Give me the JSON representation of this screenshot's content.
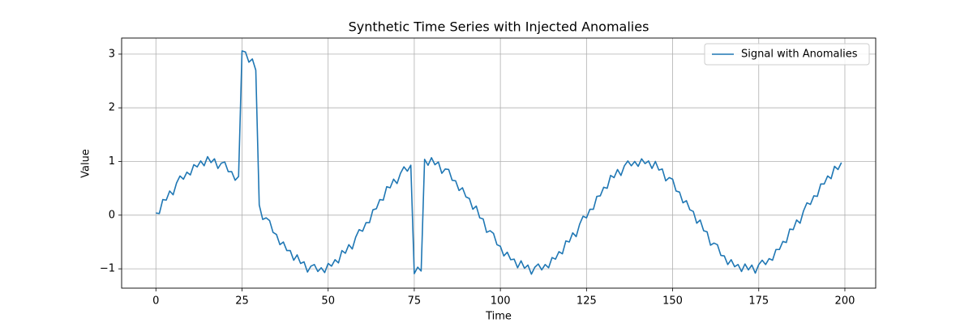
{
  "chart_data": {
    "type": "line",
    "title": "Synthetic Time Series with Injected Anomalies",
    "x_label": "Time",
    "y_label": "Value",
    "x": [
      0,
      1,
      2,
      3,
      4,
      5,
      6,
      7,
      8,
      9,
      10,
      11,
      12,
      13,
      14,
      15,
      16,
      17,
      18,
      19,
      20,
      21,
      22,
      23,
      24,
      25,
      26,
      27,
      28,
      29,
      30,
      31,
      32,
      33,
      34,
      35,
      36,
      37,
      38,
      39,
      40,
      41,
      42,
      43,
      44,
      45,
      46,
      47,
      48,
      49,
      50,
      51,
      52,
      53,
      54,
      55,
      56,
      57,
      58,
      59,
      60,
      61,
      62,
      63,
      64,
      65,
      66,
      67,
      68,
      69,
      70,
      71,
      72,
      73,
      74,
      75,
      76,
      77,
      78,
      79,
      80,
      81,
      82,
      83,
      84,
      85,
      86,
      87,
      88,
      89,
      90,
      91,
      92,
      93,
      94,
      95,
      96,
      97,
      98,
      99,
      100,
      101,
      102,
      103,
      104,
      105,
      106,
      107,
      108,
      109,
      110,
      111,
      112,
      113,
      114,
      115,
      116,
      117,
      118,
      119,
      120,
      121,
      122,
      123,
      124,
      125,
      126,
      127,
      128,
      129,
      130,
      131,
      132,
      133,
      134,
      135,
      136,
      137,
      138,
      139,
      140,
      141,
      142,
      143,
      144,
      145,
      146,
      147,
      148,
      149,
      150,
      151,
      152,
      153,
      154,
      155,
      156,
      157,
      158,
      159,
      160,
      161,
      162,
      163,
      164,
      165,
      166,
      167,
      168,
      169,
      170,
      171,
      172,
      173,
      174,
      175,
      176,
      177,
      178,
      179,
      180,
      181,
      182,
      183,
      184,
      185,
      186,
      187,
      188,
      189,
      190,
      191,
      192,
      193,
      194,
      195,
      196,
      197,
      198,
      199
    ],
    "series": [
      {
        "name": "Signal with Anomalies",
        "color": "#1f77b4",
        "values": [
          0.04,
          0.03,
          0.29,
          0.28,
          0.45,
          0.38,
          0.6,
          0.73,
          0.67,
          0.8,
          0.75,
          0.94,
          0.9,
          1.01,
          0.92,
          1.09,
          0.98,
          1.05,
          0.87,
          0.97,
          0.99,
          0.81,
          0.81,
          0.65,
          0.72,
          3.06,
          3.04,
          2.85,
          2.91,
          2.7,
          0.19,
          -0.08,
          -0.05,
          -0.1,
          -0.32,
          -0.36,
          -0.55,
          -0.5,
          -0.66,
          -0.66,
          -0.84,
          -0.74,
          -0.9,
          -0.87,
          -1.06,
          -0.95,
          -0.92,
          -1.05,
          -0.98,
          -1.07,
          -0.9,
          -0.95,
          -0.83,
          -0.89,
          -0.66,
          -0.71,
          -0.55,
          -0.63,
          -0.41,
          -0.27,
          -0.3,
          -0.14,
          -0.14,
          0.1,
          0.12,
          0.29,
          0.28,
          0.53,
          0.51,
          0.67,
          0.59,
          0.78,
          0.9,
          0.82,
          0.93,
          -1.09,
          -0.97,
          -1.04,
          1.04,
          0.93,
          1.07,
          0.94,
          0.99,
          0.78,
          0.86,
          0.85,
          0.65,
          0.64,
          0.46,
          0.51,
          0.34,
          0.31,
          0.11,
          0.17,
          -0.05,
          -0.07,
          -0.32,
          -0.29,
          -0.34,
          -0.55,
          -0.58,
          -0.76,
          -0.69,
          -0.83,
          -0.82,
          -0.98,
          -0.85,
          -0.99,
          -0.93,
          -1.1,
          -0.97,
          -0.91,
          -1.02,
          -0.92,
          -0.98,
          -0.79,
          -0.82,
          -0.68,
          -0.72,
          -0.48,
          -0.5,
          -0.33,
          -0.4,
          -0.17,
          -0.02,
          -0.05,
          0.11,
          0.11,
          0.35,
          0.36,
          0.52,
          0.5,
          0.74,
          0.7,
          0.85,
          0.74,
          0.92,
          1.01,
          0.92,
          1.0,
          0.91,
          1.05,
          0.96,
          1.01,
          0.87,
          1.0,
          0.84,
          0.86,
          0.64,
          0.7,
          0.67,
          0.45,
          0.43,
          0.23,
          0.27,
          0.1,
          0.07,
          -0.15,
          -0.09,
          -0.29,
          -0.31,
          -0.56,
          -0.52,
          -0.55,
          -0.75,
          -0.76,
          -0.92,
          -0.83,
          -0.96,
          -0.92,
          -1.05,
          -0.91,
          -1.02,
          -0.93,
          -1.08,
          -0.92,
          -0.84,
          -0.92,
          -0.81,
          -0.84,
          -0.64,
          -0.64,
          -0.49,
          -0.51,
          -0.26,
          -0.27,
          -0.09,
          -0.15,
          0.08,
          0.23,
          0.2,
          0.36,
          0.35,
          0.58,
          0.58,
          0.73,
          0.68,
          0.91,
          0.85,
          0.98
        ]
      }
    ],
    "xlim": [
      -9.95,
      208.95
    ],
    "ylim": [
      -1.36,
      3.3
    ],
    "xticks": [
      0,
      25,
      50,
      75,
      100,
      125,
      150,
      175,
      200
    ],
    "yticks": [
      {
        "value": -1,
        "label": "−1"
      },
      0,
      1,
      2,
      3
    ],
    "grid": true,
    "legend": "upper right"
  }
}
